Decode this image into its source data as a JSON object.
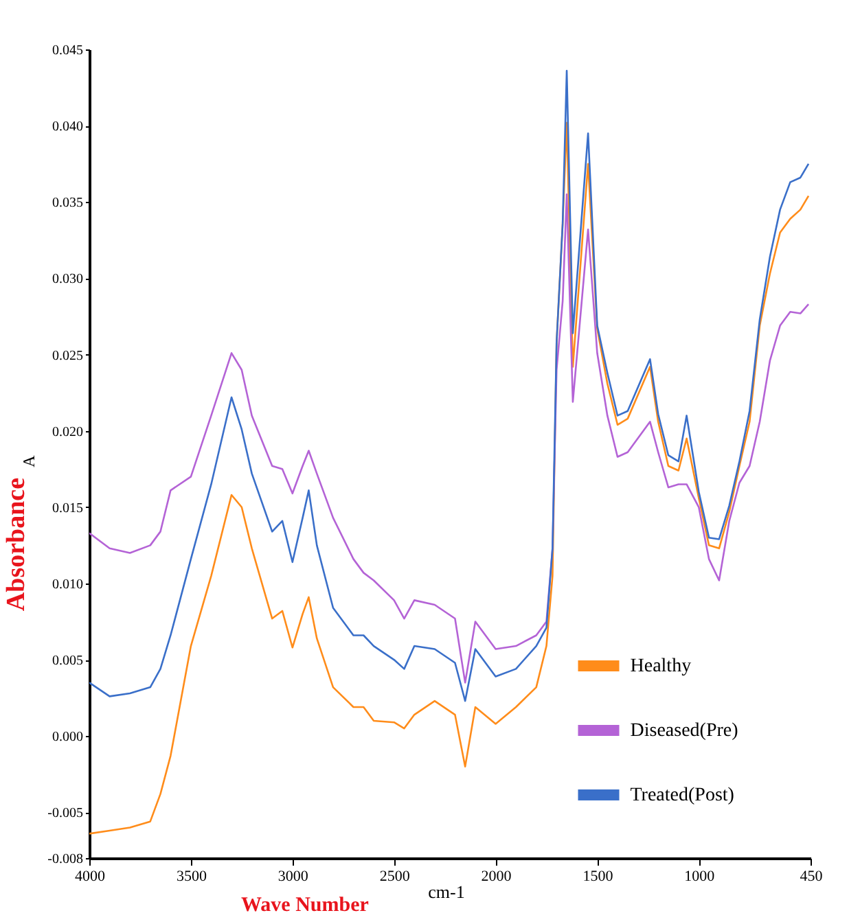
{
  "chart_data": {
    "type": "line",
    "xlabel": "Wave Number",
    "ylabel": "Absorbance",
    "annotations": [
      "A",
      "cm-1"
    ],
    "xlim": [
      4000,
      450
    ],
    "xticks": [
      4000,
      3500,
      3000,
      2500,
      2000,
      1500,
      1000,
      450
    ],
    "ylim": [
      -0.008,
      0.045
    ],
    "yticks": [
      {
        "value": -0.008,
        "label": "-0.008"
      },
      {
        "value": -0.005,
        "label": "-0.005"
      },
      {
        "value": 0,
        "label": "0.000"
      },
      {
        "value": 0.005,
        "label": "0.005"
      },
      {
        "value": 0.01,
        "label": "0.010"
      },
      {
        "value": 0.015,
        "label": "0.015"
      },
      {
        "value": 0.02,
        "label": "0.020"
      },
      {
        "value": 0.025,
        "label": "0.025"
      },
      {
        "value": 0.03,
        "label": "0.030"
      },
      {
        "value": 0.035,
        "label": "0.035"
      },
      {
        "value": 0.04,
        "label": "0.040"
      },
      {
        "value": 0.045,
        "label": "0.045"
      }
    ],
    "x": [
      4000,
      3900,
      3800,
      3700,
      3650,
      3600,
      3500,
      3400,
      3300,
      3250,
      3200,
      3100,
      3050,
      3000,
      2950,
      2920,
      2880,
      2800,
      2700,
      2650,
      2600,
      2500,
      2450,
      2400,
      2300,
      2200,
      2150,
      2100,
      2000,
      1900,
      1800,
      1750,
      1720,
      1700,
      1670,
      1650,
      1620,
      1545,
      1500,
      1450,
      1400,
      1350,
      1240,
      1200,
      1150,
      1100,
      1060,
      1000,
      950,
      900,
      850,
      800,
      750,
      700,
      650,
      600,
      550,
      500,
      460
    ],
    "grid": false,
    "legend": "right",
    "marker": "none",
    "line_style": "solid",
    "series": [
      {
        "name": "Healthy",
        "color": "#ff8c1a",
        "values": [
          -0.0064,
          -0.0062,
          -0.006,
          -0.0056,
          -0.0038,
          -0.0013,
          0.0059,
          0.0105,
          0.0158,
          0.015,
          0.0123,
          0.0077,
          0.0082,
          0.0058,
          0.008,
          0.0091,
          0.0064,
          0.0032,
          0.0019,
          0.0019,
          0.001,
          0.0009,
          0.0005,
          0.0014,
          0.0023,
          0.0014,
          -0.002,
          0.0019,
          0.0008,
          0.0019,
          0.0032,
          0.0059,
          0.0105,
          0.0258,
          0.0336,
          0.0402,
          0.0242,
          0.0375,
          0.0267,
          0.0231,
          0.0204,
          0.0208,
          0.0242,
          0.0206,
          0.0177,
          0.0174,
          0.0195,
          0.0156,
          0.0125,
          0.0123,
          0.0147,
          0.0177,
          0.0206,
          0.0269,
          0.0303,
          0.033,
          0.0339,
          0.0345,
          0.0354
        ]
      },
      {
        "name": "Diseased(Pre)",
        "color": "#b463d6",
        "values": [
          0.0133,
          0.0123,
          0.012,
          0.0125,
          0.0134,
          0.0161,
          0.017,
          0.021,
          0.0251,
          0.024,
          0.021,
          0.0177,
          0.0175,
          0.0159,
          0.0177,
          0.0187,
          0.0172,
          0.0143,
          0.0116,
          0.0107,
          0.0102,
          0.0089,
          0.0077,
          0.0089,
          0.0086,
          0.0077,
          0.0035,
          0.0075,
          0.0057,
          0.0059,
          0.0066,
          0.0075,
          0.0123,
          0.024,
          0.0285,
          0.0355,
          0.0219,
          0.0332,
          0.0251,
          0.021,
          0.0183,
          0.0186,
          0.0206,
          0.0186,
          0.0163,
          0.0165,
          0.0165,
          0.015,
          0.0116,
          0.0102,
          0.0141,
          0.0166,
          0.0177,
          0.0206,
          0.0246,
          0.0269,
          0.0278,
          0.0277,
          0.0283
        ]
      },
      {
        "name": "Treated(Post)",
        "color": "#3a6fc9",
        "values": [
          0.0035,
          0.0026,
          0.0028,
          0.0032,
          0.0044,
          0.0066,
          0.0116,
          0.0165,
          0.0222,
          0.0201,
          0.0172,
          0.0134,
          0.0141,
          0.0114,
          0.0143,
          0.0161,
          0.0125,
          0.0084,
          0.0066,
          0.0066,
          0.0059,
          0.005,
          0.0044,
          0.0059,
          0.0057,
          0.0048,
          0.0023,
          0.0057,
          0.0039,
          0.0044,
          0.0059,
          0.0071,
          0.0123,
          0.0258,
          0.0336,
          0.0436,
          0.0264,
          0.0395,
          0.0269,
          0.0238,
          0.021,
          0.0213,
          0.0247,
          0.0211,
          0.0184,
          0.018,
          0.021,
          0.016,
          0.013,
          0.0129,
          0.0151,
          0.018,
          0.0213,
          0.0273,
          0.0314,
          0.0345,
          0.0363,
          0.0366,
          0.0375
        ]
      }
    ]
  }
}
